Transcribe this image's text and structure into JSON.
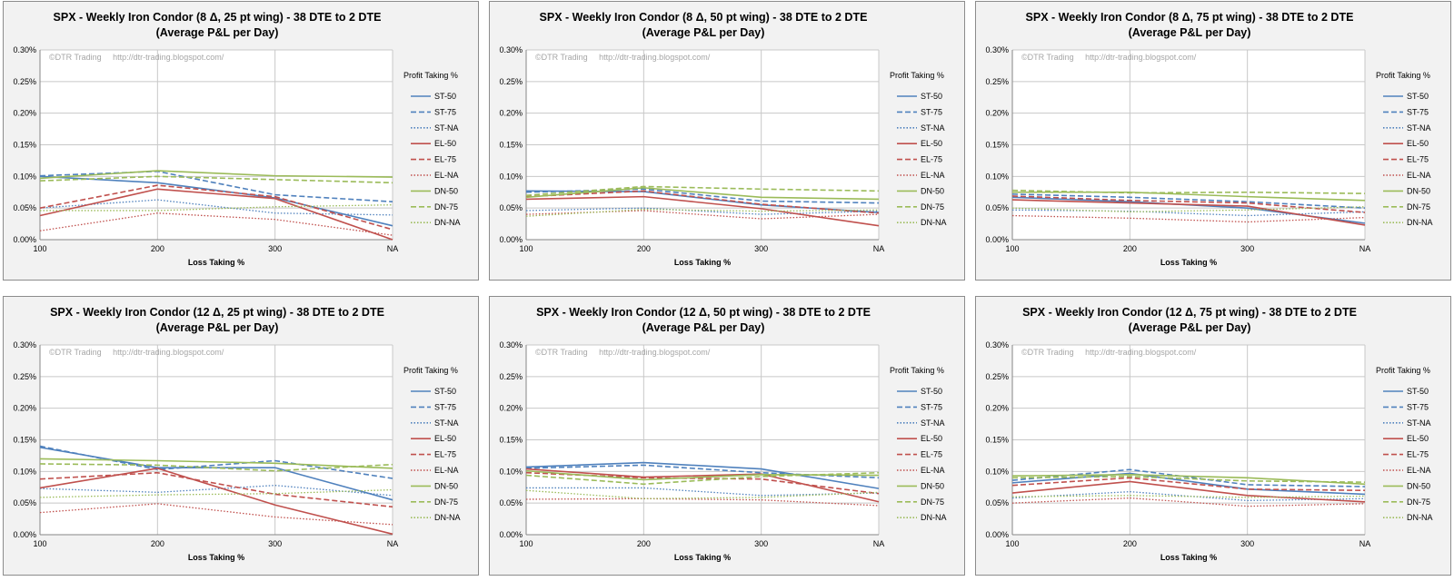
{
  "watermark": "©DTR Trading     http://dtr-trading.blogspot.com/",
  "legend_title": "Profit Taking %",
  "xlabel": "Loss Taking %",
  "yticks": [
    "0.00%",
    "0.05%",
    "0.10%",
    "0.15%",
    "0.20%",
    "0.25%",
    "0.30%"
  ],
  "series_styles": [
    {
      "name": "ST-50",
      "color": "#4f81bd",
      "dash": "solid"
    },
    {
      "name": "ST-75",
      "color": "#4f81bd",
      "dash": "dashed"
    },
    {
      "name": "ST-NA",
      "color": "#4f81bd",
      "dash": "dotted"
    },
    {
      "name": "EL-50",
      "color": "#c0504d",
      "dash": "solid"
    },
    {
      "name": "EL-75",
      "color": "#c0504d",
      "dash": "dashed"
    },
    {
      "name": "EL-NA",
      "color": "#c0504d",
      "dash": "dotted"
    },
    {
      "name": "DN-50",
      "color": "#9bbb59",
      "dash": "solid"
    },
    {
      "name": "DN-75",
      "color": "#9bbb59",
      "dash": "dashed"
    },
    {
      "name": "DN-NA",
      "color": "#9bbb59",
      "dash": "dotted"
    }
  ],
  "chart_data": [
    {
      "type": "line",
      "title": [
        "SPX - Weekly Iron Condor (8 Δ, 25 pt wing) - 38 DTE to 2 DTE",
        "(Average P&L per Day)"
      ],
      "xlabel": "Loss Taking %",
      "ylabel": "",
      "ylim": [
        0,
        0.3
      ],
      "categories": [
        "100",
        "200",
        "300",
        "NA"
      ],
      "series": [
        {
          "name": "ST-50",
          "values": [
            0.1,
            0.09,
            0.066,
            0.022
          ]
        },
        {
          "name": "ST-75",
          "values": [
            0.101,
            0.108,
            0.071,
            0.06
          ]
        },
        {
          "name": "ST-NA",
          "values": [
            0.05,
            0.063,
            0.042,
            0.039
          ]
        },
        {
          "name": "EL-50",
          "values": [
            0.038,
            0.08,
            0.065,
            0.0
          ]
        },
        {
          "name": "EL-75",
          "values": [
            0.05,
            0.086,
            0.068,
            0.016
          ]
        },
        {
          "name": "EL-NA",
          "values": [
            0.014,
            0.042,
            0.032,
            0.007
          ]
        },
        {
          "name": "DN-50",
          "values": [
            0.097,
            0.109,
            0.101,
            0.099
          ]
        },
        {
          "name": "DN-75",
          "values": [
            0.093,
            0.1,
            0.095,
            0.09
          ]
        },
        {
          "name": "DN-NA",
          "values": [
            0.046,
            0.046,
            0.052,
            0.055
          ]
        }
      ]
    },
    {
      "type": "line",
      "title": [
        "SPX - Weekly Iron Condor (8 Δ, 50 pt wing) - 38 DTE to 2 DTE",
        "(Average P&L per Day)"
      ],
      "xlabel": "Loss Taking %",
      "ylabel": "",
      "ylim": [
        0,
        0.3
      ],
      "categories": [
        "100",
        "200",
        "300",
        "NA"
      ],
      "series": [
        {
          "name": "ST-50",
          "values": [
            0.077,
            0.076,
            0.055,
            0.043
          ]
        },
        {
          "name": "ST-75",
          "values": [
            0.075,
            0.08,
            0.061,
            0.058
          ]
        },
        {
          "name": "ST-NA",
          "values": [
            0.046,
            0.05,
            0.04,
            0.045
          ]
        },
        {
          "name": "EL-50",
          "values": [
            0.064,
            0.068,
            0.049,
            0.022
          ]
        },
        {
          "name": "EL-75",
          "values": [
            0.068,
            0.077,
            0.056,
            0.042
          ]
        },
        {
          "name": "EL-NA",
          "values": [
            0.04,
            0.046,
            0.033,
            0.04
          ]
        },
        {
          "name": "DN-50",
          "values": [
            0.067,
            0.082,
            0.067,
            0.064
          ]
        },
        {
          "name": "DN-75",
          "values": [
            0.07,
            0.084,
            0.08,
            0.077
          ]
        },
        {
          "name": "DN-NA",
          "values": [
            0.037,
            0.048,
            0.045,
            0.047
          ]
        }
      ]
    },
    {
      "type": "line",
      "title": [
        "SPX - Weekly Iron Condor (8 Δ, 75 pt wing) - 38 DTE to 2 DTE",
        "(Average P&L per Day)"
      ],
      "xlabel": "Loss Taking %",
      "ylabel": "",
      "ylim": [
        0,
        0.3
      ],
      "categories": [
        "100",
        "200",
        "300",
        "NA"
      ],
      "series": [
        {
          "name": "ST-50",
          "values": [
            0.067,
            0.06,
            0.05,
            0.026
          ]
        },
        {
          "name": "ST-75",
          "values": [
            0.072,
            0.067,
            0.06,
            0.05
          ]
        },
        {
          "name": "ST-NA",
          "values": [
            0.047,
            0.045,
            0.038,
            0.044
          ]
        },
        {
          "name": "EL-50",
          "values": [
            0.063,
            0.058,
            0.053,
            0.023
          ]
        },
        {
          "name": "EL-75",
          "values": [
            0.069,
            0.062,
            0.058,
            0.043
          ]
        },
        {
          "name": "EL-NA",
          "values": [
            0.038,
            0.034,
            0.028,
            0.035
          ]
        },
        {
          "name": "DN-50",
          "values": [
            0.075,
            0.075,
            0.068,
            0.062
          ]
        },
        {
          "name": "DN-75",
          "values": [
            0.078,
            0.074,
            0.075,
            0.073
          ]
        },
        {
          "name": "DN-NA",
          "values": [
            0.05,
            0.044,
            0.047,
            0.052
          ]
        }
      ]
    },
    {
      "type": "line",
      "title": [
        "SPX - Weekly Iron Condor (12 Δ, 25 pt wing) - 38 DTE to 2 DTE",
        "(Average P&L per Day)"
      ],
      "xlabel": "Loss Taking %",
      "ylabel": "",
      "ylim": [
        0,
        0.3
      ],
      "categories": [
        "100",
        "200",
        "300",
        "NA"
      ],
      "series": [
        {
          "name": "ST-50",
          "values": [
            0.138,
            0.106,
            0.106,
            0.055
          ]
        },
        {
          "name": "ST-75",
          "values": [
            0.14,
            0.103,
            0.117,
            0.089
          ]
        },
        {
          "name": "ST-NA",
          "values": [
            0.073,
            0.067,
            0.078,
            0.062
          ]
        },
        {
          "name": "EL-50",
          "values": [
            0.074,
            0.105,
            0.047,
            0.001
          ]
        },
        {
          "name": "EL-75",
          "values": [
            0.088,
            0.098,
            0.064,
            0.044
          ]
        },
        {
          "name": "EL-NA",
          "values": [
            0.035,
            0.049,
            0.028,
            0.016
          ]
        },
        {
          "name": "DN-50",
          "values": [
            0.12,
            0.117,
            0.113,
            0.105
          ]
        },
        {
          "name": "DN-75",
          "values": [
            0.112,
            0.11,
            0.101,
            0.111
          ]
        },
        {
          "name": "DN-NA",
          "values": [
            0.059,
            0.063,
            0.065,
            0.071
          ]
        }
      ]
    },
    {
      "type": "line",
      "title": [
        "SPX - Weekly Iron Condor (12 Δ, 50 pt wing) - 38 DTE to 2 DTE",
        "(Average P&L per Day)"
      ],
      "xlabel": "Loss Taking %",
      "ylabel": "",
      "ylim": [
        0,
        0.3
      ],
      "categories": [
        "100",
        "200",
        "300",
        "NA"
      ],
      "series": [
        {
          "name": "ST-50",
          "values": [
            0.107,
            0.114,
            0.104,
            0.073
          ]
        },
        {
          "name": "ST-75",
          "values": [
            0.105,
            0.11,
            0.098,
            0.09
          ]
        },
        {
          "name": "ST-NA",
          "values": [
            0.074,
            0.074,
            0.062,
            0.066
          ]
        },
        {
          "name": "EL-50",
          "values": [
            0.104,
            0.091,
            0.096,
            0.052
          ]
        },
        {
          "name": "EL-75",
          "values": [
            0.098,
            0.09,
            0.088,
            0.065
          ]
        },
        {
          "name": "EL-NA",
          "values": [
            0.056,
            0.057,
            0.055,
            0.046
          ]
        },
        {
          "name": "DN-50",
          "values": [
            0.101,
            0.087,
            0.095,
            0.094
          ]
        },
        {
          "name": "DN-75",
          "values": [
            0.094,
            0.08,
            0.092,
            0.098
          ]
        },
        {
          "name": "DN-NA",
          "values": [
            0.07,
            0.057,
            0.059,
            0.067
          ]
        }
      ]
    },
    {
      "type": "line",
      "title": [
        "SPX - Weekly Iron Condor (12 Δ, 75 pt wing) - 38 DTE to 2 DTE",
        "(Average P&L per Day)"
      ],
      "xlabel": "Loss Taking %",
      "ylabel": "",
      "ylim": [
        0,
        0.3
      ],
      "categories": [
        "100",
        "200",
        "300",
        "NA"
      ],
      "series": [
        {
          "name": "ST-50",
          "values": [
            0.082,
            0.097,
            0.072,
            0.064
          ]
        },
        {
          "name": "ST-75",
          "values": [
            0.086,
            0.103,
            0.079,
            0.076
          ]
        },
        {
          "name": "ST-NA",
          "values": [
            0.058,
            0.068,
            0.054,
            0.057
          ]
        },
        {
          "name": "EL-50",
          "values": [
            0.066,
            0.084,
            0.062,
            0.052
          ]
        },
        {
          "name": "EL-75",
          "values": [
            0.078,
            0.09,
            0.072,
            0.07
          ]
        },
        {
          "name": "EL-NA",
          "values": [
            0.05,
            0.058,
            0.045,
            0.049
          ]
        },
        {
          "name": "DN-50",
          "values": [
            0.093,
            0.095,
            0.09,
            0.08
          ]
        },
        {
          "name": "DN-75",
          "values": [
            0.09,
            0.092,
            0.085,
            0.083
          ]
        },
        {
          "name": "DN-NA",
          "values": [
            0.06,
            0.062,
            0.059,
            0.061
          ]
        }
      ]
    }
  ]
}
